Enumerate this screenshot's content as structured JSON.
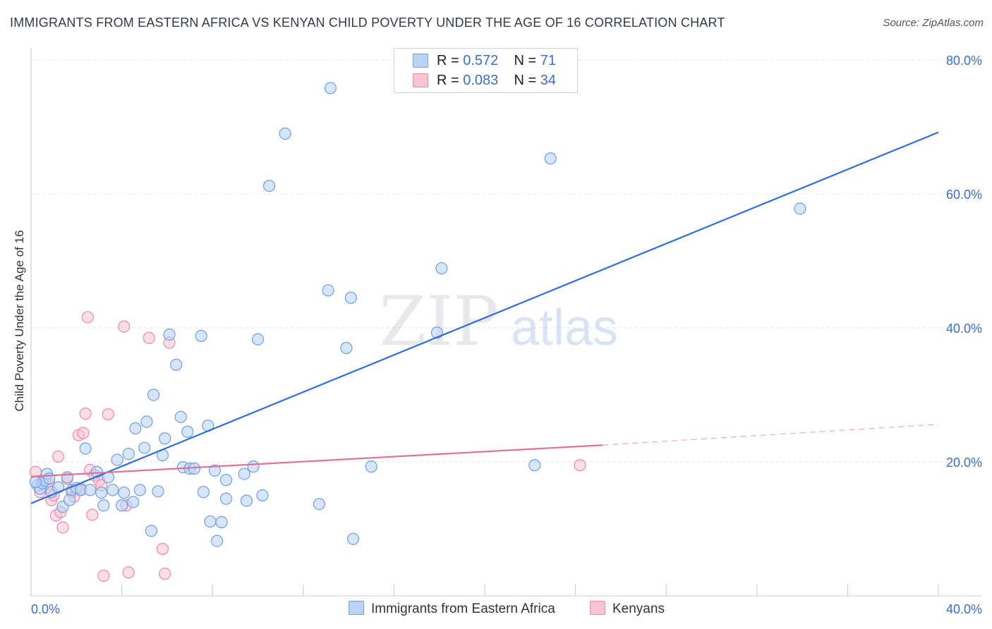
{
  "title": "IMMIGRANTS FROM EASTERN AFRICA VS KENYAN CHILD POVERTY UNDER THE AGE OF 16 CORRELATION CHART",
  "source": "Source: ZipAtlas.com",
  "watermark": {
    "zip": "ZIP",
    "atlas": "atlas"
  },
  "legend": {
    "rows": [
      {
        "r_label": "R = ",
        "r_value": "0.572",
        "n_label": "N = ",
        "n_value": "71"
      },
      {
        "r_label": "R = ",
        "r_value": "0.083",
        "n_label": "N = ",
        "n_value": "34"
      }
    ]
  },
  "bottom_legend": {
    "blue": "Immigrants from Eastern Africa",
    "pink": "Kenyans"
  },
  "colors": {
    "blue_fill": "#bcd3f5",
    "blue_stroke": "#6f9fe0",
    "blue_line": "#2e6fd1",
    "pink_fill": "#f9c3d4",
    "pink_stroke": "#e98aa8",
    "pink_line": "#e0709a",
    "tick_label": "#3a6fc4",
    "grid": "#dcdfe4"
  },
  "chart_data": {
    "type": "scatter",
    "title": "IMMIGRANTS FROM EASTERN AFRICA VS KENYAN CHILD POVERTY UNDER THE AGE OF 16 CORRELATION CHART",
    "xlabel": "",
    "ylabel": "Child Poverty Under the Age of 16",
    "xlim": [
      0,
      40
    ],
    "ylim": [
      0,
      82
    ],
    "x_tick_labels": {
      "0": "0.0%",
      "40": "40.0%"
    },
    "y_tick_labels": {
      "20": "20.0%",
      "40": "40.0%",
      "60": "60.0%",
      "80": "80.0%"
    },
    "grid": true,
    "legend_position": "top-center",
    "series": [
      {
        "name": "Immigrants from Eastern Africa",
        "color": "#6f9fe0",
        "points": [
          [
            0.3,
            16.5
          ],
          [
            0.4,
            16.0
          ],
          [
            0.5,
            16.8
          ],
          [
            0.6,
            17.2
          ],
          [
            0.7,
            18.2
          ],
          [
            0.8,
            17.5
          ],
          [
            0.9,
            15.5
          ],
          [
            1.2,
            16.2
          ],
          [
            1.4,
            13.3
          ],
          [
            1.6,
            17.7
          ],
          [
            1.7,
            14.3
          ],
          [
            1.8,
            15.8
          ],
          [
            2.0,
            16.1
          ],
          [
            2.2,
            15.8
          ],
          [
            2.4,
            22.0
          ],
          [
            2.6,
            15.8
          ],
          [
            2.9,
            18.5
          ],
          [
            3.1,
            15.4
          ],
          [
            3.2,
            13.5
          ],
          [
            3.4,
            17.7
          ],
          [
            3.6,
            15.8
          ],
          [
            3.8,
            20.3
          ],
          [
            4.0,
            13.5
          ],
          [
            4.1,
            15.4
          ],
          [
            4.3,
            21.2
          ],
          [
            4.5,
            14.0
          ],
          [
            4.6,
            25.0
          ],
          [
            4.8,
            15.8
          ],
          [
            5.0,
            22.1
          ],
          [
            5.1,
            26.0
          ],
          [
            5.3,
            9.7
          ],
          [
            5.4,
            30.0
          ],
          [
            5.6,
            15.6
          ],
          [
            5.8,
            21.0
          ],
          [
            5.9,
            23.5
          ],
          [
            6.1,
            39.0
          ],
          [
            6.4,
            34.5
          ],
          [
            6.6,
            26.7
          ],
          [
            6.7,
            19.2
          ],
          [
            6.9,
            24.5
          ],
          [
            7.0,
            19.0
          ],
          [
            7.2,
            19.0
          ],
          [
            7.5,
            38.8
          ],
          [
            7.6,
            15.5
          ],
          [
            7.8,
            25.4
          ],
          [
            7.9,
            11.1
          ],
          [
            8.1,
            18.7
          ],
          [
            8.2,
            8.2
          ],
          [
            8.4,
            11.0
          ],
          [
            8.6,
            14.5
          ],
          [
            8.6,
            17.3
          ],
          [
            9.4,
            18.2
          ],
          [
            9.5,
            14.2
          ],
          [
            9.8,
            19.3
          ],
          [
            10.0,
            38.3
          ],
          [
            10.2,
            15.0
          ],
          [
            10.5,
            61.2
          ],
          [
            11.2,
            69.0
          ],
          [
            12.7,
            13.7
          ],
          [
            13.1,
            45.6
          ],
          [
            13.2,
            75.8
          ],
          [
            13.9,
            37.0
          ],
          [
            14.1,
            44.5
          ],
          [
            14.2,
            8.5
          ],
          [
            15.0,
            19.3
          ],
          [
            17.9,
            39.3
          ],
          [
            18.1,
            48.9
          ],
          [
            22.2,
            19.5
          ],
          [
            22.9,
            65.3
          ],
          [
            33.9,
            57.8
          ],
          [
            0.2,
            17.0
          ]
        ]
      },
      {
        "name": "Kenyans",
        "color": "#e98aa8",
        "points": [
          [
            0.2,
            18.5
          ],
          [
            0.4,
            15.5
          ],
          [
            0.5,
            17.0
          ],
          [
            0.7,
            16.2
          ],
          [
            0.8,
            16.7
          ],
          [
            0.9,
            14.3
          ],
          [
            1.0,
            15.0
          ],
          [
            1.1,
            12.0
          ],
          [
            1.2,
            20.8
          ],
          [
            1.3,
            12.5
          ],
          [
            1.4,
            10.2
          ],
          [
            1.6,
            17.5
          ],
          [
            1.8,
            15.5
          ],
          [
            1.9,
            14.8
          ],
          [
            2.1,
            24.0
          ],
          [
            2.2,
            16.0
          ],
          [
            2.3,
            24.3
          ],
          [
            2.4,
            27.2
          ],
          [
            2.5,
            41.6
          ],
          [
            2.6,
            18.8
          ],
          [
            2.7,
            12.1
          ],
          [
            2.8,
            18.0
          ],
          [
            3.0,
            17.2
          ],
          [
            3.1,
            16.5
          ],
          [
            3.2,
            3.0
          ],
          [
            3.4,
            27.1
          ],
          [
            4.1,
            40.2
          ],
          [
            4.2,
            13.5
          ],
          [
            4.3,
            3.5
          ],
          [
            5.2,
            38.5
          ],
          [
            5.8,
            7.0
          ],
          [
            5.9,
            3.3
          ],
          [
            6.1,
            37.8
          ],
          [
            24.2,
            19.5
          ]
        ]
      }
    ],
    "trend_lines": [
      {
        "series": "Immigrants from Eastern Africa",
        "x": [
          0,
          40
        ],
        "y": [
          13.8,
          69.2
        ],
        "style": "solid"
      },
      {
        "series": "Kenyans",
        "x": [
          0,
          25.2,
          40
        ],
        "y": [
          17.8,
          22.5,
          25.6
        ],
        "style": "solid-then-dashed"
      }
    ]
  }
}
